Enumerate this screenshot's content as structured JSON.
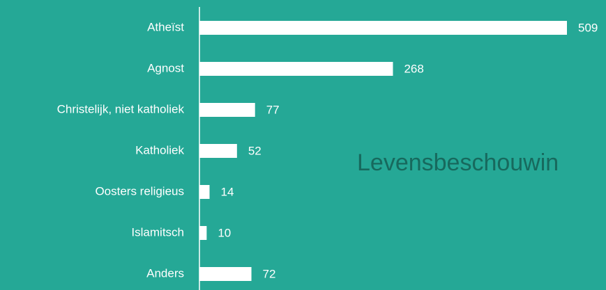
{
  "chart_data": {
    "type": "bar",
    "orientation": "horizontal",
    "title": "Levensbeschouwin",
    "categories": [
      "Atheïst",
      "Agnost",
      "Christelijk, niet katholiek",
      "Katholiek",
      "Oosters religieus",
      "Islamitsch",
      "Anders"
    ],
    "values": [
      509,
      268,
      77,
      52,
      14,
      10,
      72
    ],
    "color": "#ffffff"
  }
}
